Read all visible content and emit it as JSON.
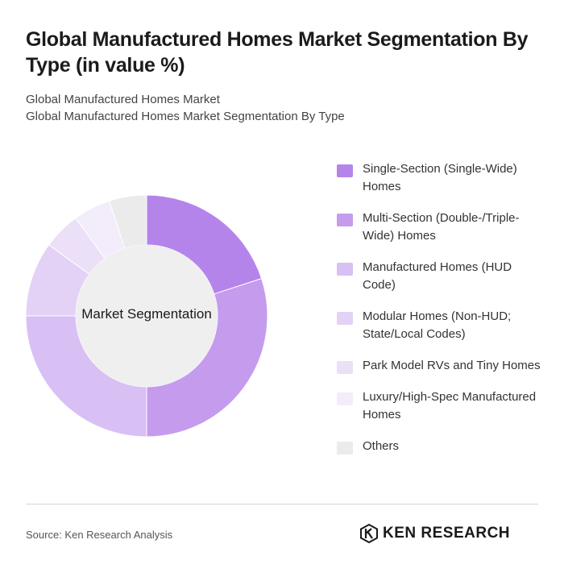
{
  "header": {
    "title": "Global Manufactured Homes Market Segmentation By Type (in value %)",
    "subtitle_line1": "Global Manufactured Homes Market",
    "subtitle_line2": "Global Manufactured Homes Market Segmentation By Type"
  },
  "chart_data": {
    "type": "pie",
    "center_label": "Market Segmentation",
    "categories": [
      "Single-Section (Single-Wide) Homes",
      "Multi-Section (Double-/Triple-Wide) Homes",
      "Manufactured Homes (HUD Code)",
      "Modular Homes (Non-HUD; State/Local Codes)",
      "Park Model RVs and Tiny Homes",
      "Luxury/High-Spec Manufactured Homes",
      "Others"
    ],
    "values": [
      20,
      30,
      25,
      10,
      5,
      5,
      5
    ],
    "colors": [
      "#b584eb",
      "#c59bee",
      "#d8bff4",
      "#e3d1f6",
      "#ecdff8",
      "#f3ecfb",
      "#ebebeb"
    ],
    "center_color": "#efefef"
  },
  "footer": {
    "source": "Source: Ken Research Analysis",
    "logo_text": "KEN RESEARCH"
  }
}
